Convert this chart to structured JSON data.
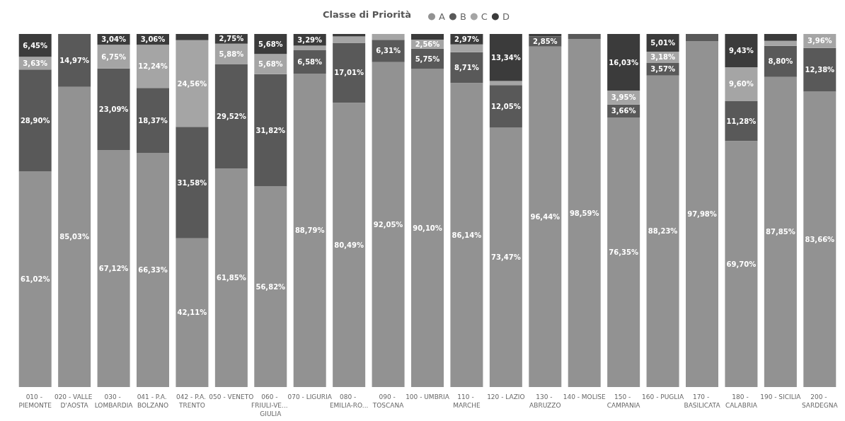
{
  "chart_data": {
    "type": "bar",
    "title": "Classe di Priorità",
    "stacked": true,
    "legend": "top",
    "tick_labels": "x",
    "ylim": [
      0,
      100
    ],
    "categories": [
      "010 - PIEMONTE",
      "020 - VALLE D'AOSTA",
      "030 - LOMBARDIA",
      "041 - P.A. BOLZANO",
      "042 - P.A. TRENTO",
      "050 - VENETO",
      "060 - FRIULI-VE... GIULIA",
      "070 - LIGURIA",
      "080 - EMILIA-RO...",
      "090 - TOSCANA",
      "100 - UMBRIA",
      "110 - MARCHE",
      "120 - LAZIO",
      "130 - ABRUZZO",
      "140 - MOLISE",
      "150 - CAMPANIA",
      "160 - PUGLIA",
      "170 - BASILICATA",
      "180 - CALABRIA",
      "190 - SICILIA",
      "200 - SARDEGNA"
    ],
    "series": [
      {
        "name": "A",
        "color": "#929292",
        "values": [
          61.02,
          85.03,
          67.12,
          66.33,
          42.11,
          61.85,
          56.82,
          88.79,
          80.49,
          92.05,
          90.1,
          86.14,
          73.47,
          96.44,
          98.59,
          76.35,
          88.23,
          97.98,
          69.7,
          87.85,
          83.66
        ],
        "value_labels": [
          "61,02%",
          "85,03%",
          "67,12%",
          "66,33%",
          "42,11%",
          "61,85%",
          "56,82%",
          "88,79%",
          "80,49%",
          "92,05%",
          "90,10%",
          "86,14%",
          "73,47%",
          "96,44%",
          "98,59%",
          "76,35%",
          "88,23%",
          "97,98%",
          "69,70%",
          "87,85%",
          "83,66%"
        ]
      },
      {
        "name": "B",
        "color": "#595959",
        "values": [
          28.9,
          14.97,
          23.09,
          18.37,
          31.58,
          29.52,
          31.82,
          6.58,
          17.01,
          6.31,
          5.75,
          8.71,
          12.05,
          2.85,
          1.41,
          3.66,
          3.57,
          2.02,
          11.28,
          8.8,
          12.38
        ],
        "value_labels": [
          "28,90%",
          "14,97%",
          "23,09%",
          "18,37%",
          "31,58%",
          "29,52%",
          "31,82%",
          "6,58%",
          "17,01%",
          "6,31%",
          "5,75%",
          "8,71%",
          "12,05%",
          "2,85%",
          null,
          "3,66%",
          "3,57%",
          null,
          "11,28%",
          "8,80%",
          "12,38%"
        ]
      },
      {
        "name": "C",
        "color": "#a5a5a5",
        "values": [
          3.63,
          0,
          6.75,
          12.24,
          24.56,
          5.88,
          5.68,
          1.34,
          1.8,
          1.64,
          2.56,
          2.18,
          1.14,
          0,
          0,
          3.95,
          3.18,
          0,
          9.6,
          1.4,
          3.96
        ],
        "value_labels": [
          "3,63%",
          null,
          "6,75%",
          "12,24%",
          "24,56%",
          "5,88%",
          "5,68%",
          null,
          null,
          null,
          "2,56%",
          null,
          null,
          null,
          null,
          "3,95%",
          "3,18%",
          null,
          "9,60%",
          null,
          "3,96%"
        ]
      },
      {
        "name": "D",
        "color": "#3b3b3b",
        "values": [
          6.45,
          0,
          3.04,
          3.06,
          1.75,
          2.75,
          5.68,
          3.29,
          0.7,
          0,
          1.59,
          2.97,
          13.34,
          0.71,
          0,
          16.03,
          5.01,
          0,
          9.43,
          1.95,
          0
        ],
        "value_labels": [
          "6,45%",
          null,
          "3,04%",
          "3,06%",
          null,
          "2,75%",
          "5,68%",
          "3,29%",
          null,
          null,
          null,
          "2,97%",
          "13,34%",
          null,
          null,
          "16,03%",
          "5,01%",
          null,
          "9,43%",
          null,
          null
        ]
      }
    ]
  }
}
